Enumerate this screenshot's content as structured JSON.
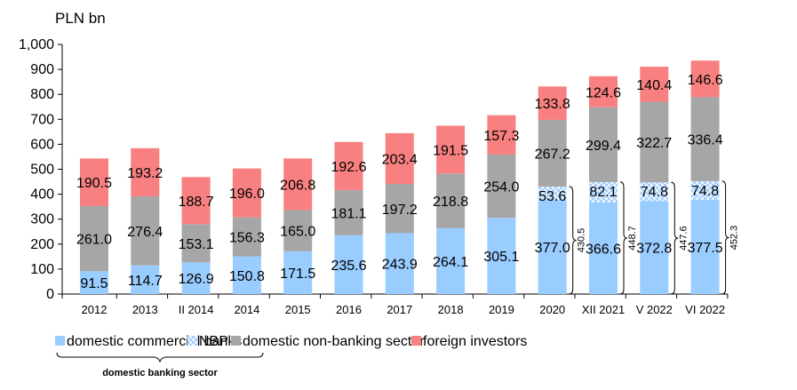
{
  "chart_data": {
    "type": "stacked_bar",
    "unit_label": "PLN bn",
    "categories": [
      "2012",
      "2013",
      "II 2014",
      "2014",
      "2015",
      "2016",
      "2017",
      "2018",
      "2019",
      "2020",
      "XII 2021",
      "V 2022",
      "VI 2022"
    ],
    "ylim": [
      0,
      1000
    ],
    "yticks": [
      "0",
      "100",
      "200",
      "300",
      "400",
      "500",
      "600",
      "700",
      "800",
      "900",
      "1,000"
    ],
    "ytick_values": [
      0,
      100,
      200,
      300,
      400,
      500,
      600,
      700,
      800,
      900,
      1000
    ],
    "grid": false,
    "legend_position": "bottom",
    "series": [
      {
        "name": "domestic commercial banks",
        "color": "#99CCFF",
        "values": [
          91.5,
          114.7,
          126.9,
          150.8,
          171.5,
          235.6,
          243.9,
          264.1,
          305.1,
          377.0,
          366.6,
          372.8,
          377.5
        ],
        "labels": [
          "91.5",
          "114.7",
          "126.9",
          "150.8",
          "171.5",
          "235.6",
          "243.9",
          "264.1",
          "305.1",
          "377.0",
          "366.6",
          "372.8",
          "377.5"
        ]
      },
      {
        "name": "NBP",
        "color": "#CCE5FF",
        "values": [
          0,
          0,
          0,
          0,
          0,
          0,
          0,
          0,
          0,
          53.6,
          82.1,
          74.8,
          74.8
        ],
        "labels": [
          "",
          "",
          "",
          "",
          "",
          "",
          "",
          "",
          "",
          "53.6",
          "82.1",
          "74.8",
          "74.8"
        ]
      },
      {
        "name": "domestic non-banking sector",
        "color": "#A6A6A6",
        "values": [
          261.0,
          276.4,
          153.1,
          156.3,
          165.0,
          181.1,
          197.2,
          218.8,
          254.0,
          267.2,
          299.4,
          322.7,
          336.4
        ],
        "labels": [
          "261.0",
          "276.4",
          "153.1",
          "156.3",
          "165.0",
          "181.1",
          "197.2",
          "218.8",
          "254.0",
          "267.2",
          "299.4",
          "322.7",
          "336.4"
        ]
      },
      {
        "name": "foreign investors",
        "color": "#F88080",
        "values": [
          190.5,
          193.2,
          188.7,
          196.0,
          206.8,
          192.6,
          203.4,
          191.5,
          157.3,
          133.8,
          124.6,
          140.4,
          146.6
        ],
        "labels": [
          "190.5",
          "193.2",
          "188.7",
          "196.0",
          "206.8",
          "192.6",
          "203.4",
          "191.5",
          "157.3",
          "133.8",
          "124.6",
          "140.4",
          "146.6"
        ]
      }
    ],
    "annotations": {
      "brackets": [
        {
          "category": "2020",
          "value": 430.5,
          "label": "430.5"
        },
        {
          "category": "XII 2021",
          "value": 448.7,
          "label": "448.7"
        },
        {
          "category": "V 2022",
          "value": 447.6,
          "label": "447.6"
        },
        {
          "category": "VI 2022",
          "value": 452.3,
          "label": "452.3"
        }
      ],
      "group_label": "domestic banking sector"
    }
  }
}
